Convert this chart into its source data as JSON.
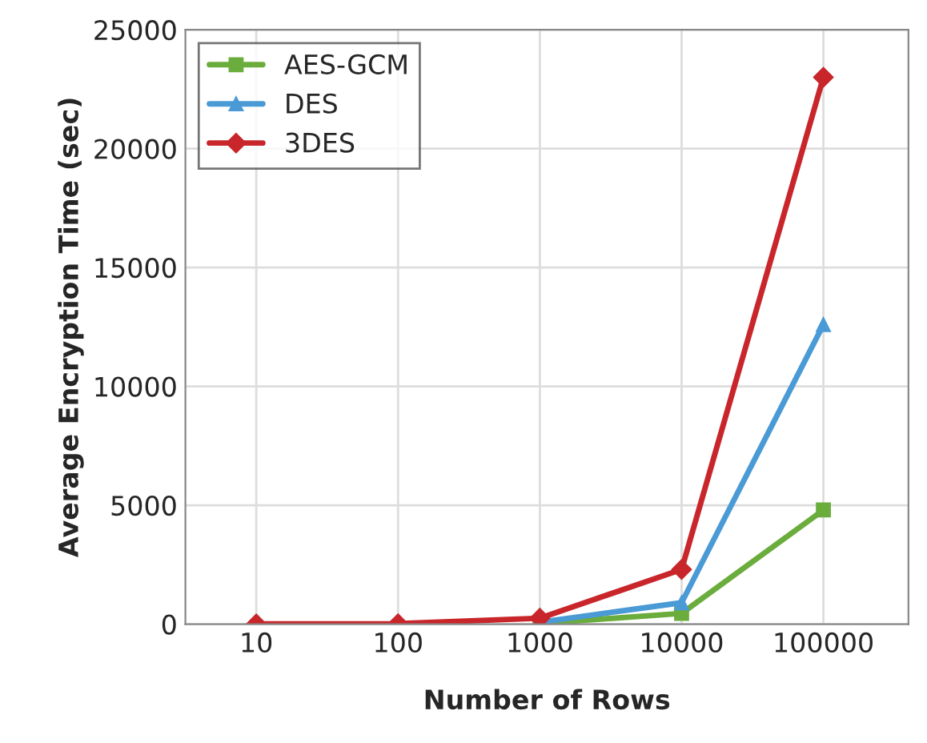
{
  "chart_data": {
    "type": "line",
    "xlabel": "Number of Rows",
    "ylabel": "Average Encryption Time (sec)",
    "categories": [
      "10",
      "100",
      "1000",
      "10000",
      "100000"
    ],
    "series": [
      {
        "name": "AES-GCM",
        "color": "#6aad3d",
        "marker": "square",
        "values": [
          null,
          null,
          30,
          450,
          4800
        ]
      },
      {
        "name": "DES",
        "color": "#4a9ad6",
        "marker": "triangle",
        "values": [
          null,
          null,
          80,
          900,
          12600
        ]
      },
      {
        "name": "3DES",
        "color": "#c8262b",
        "marker": "diamond",
        "values": [
          10,
          20,
          250,
          2300,
          23000
        ]
      }
    ],
    "ylim": [
      0,
      25000
    ],
    "yticks": [
      0,
      5000,
      10000,
      15000,
      20000,
      25000
    ],
    "grid": true,
    "legend": "top left",
    "line_style": "solid"
  }
}
